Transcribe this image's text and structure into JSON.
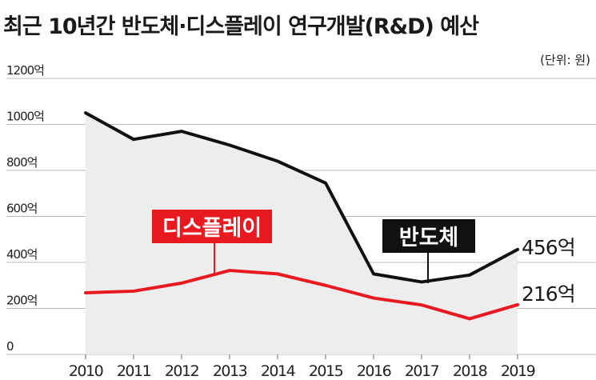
{
  "title": "최근 10년간 반도체·디스플레이 연구개발(R&D) 예산",
  "unit_note": "(단위: 원)",
  "colors": {
    "semiconductor": "#111111",
    "display": "#e8191f",
    "area_fill": "#ededed"
  },
  "annotations": {
    "semiconductor_end": "456억",
    "display_end": "216억"
  },
  "chart_data": {
    "type": "line",
    "x": [
      "2010",
      "2011",
      "2012",
      "2013",
      "2014",
      "2015",
      "2016",
      "2017",
      "2018",
      "2019"
    ],
    "ylim": [
      0,
      1200
    ],
    "yticks": [
      0,
      200,
      400,
      600,
      800,
      1000,
      1200
    ],
    "ytick_labels": [
      "0",
      "200억",
      "400억",
      "600억",
      "800억",
      "1000억",
      "1200억"
    ],
    "grid": true,
    "legend": "callout labels on lines",
    "series": [
      {
        "name": "반도체",
        "values": [
          1050,
          935,
          970,
          910,
          840,
          745,
          350,
          315,
          345,
          456
        ]
      },
      {
        "name": "디스플레이",
        "values": [
          268,
          275,
          310,
          365,
          350,
          300,
          245,
          215,
          155,
          216
        ]
      }
    ]
  }
}
